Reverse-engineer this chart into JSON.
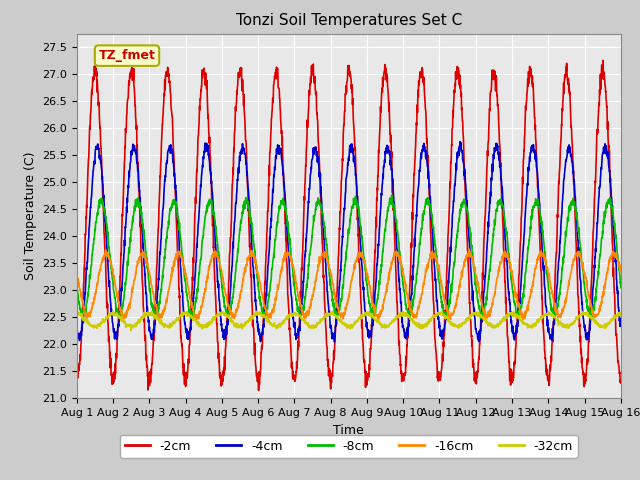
{
  "title": "Tonzi Soil Temperatures Set C",
  "xlabel": "Time",
  "ylabel": "Soil Temperature (C)",
  "xlim": [
    0,
    15
  ],
  "ylim": [
    21.0,
    27.75
  ],
  "xtick_labels": [
    "Aug 1",
    "Aug 2",
    "Aug 3",
    "Aug 4",
    "Aug 5",
    "Aug 6",
    "Aug 7",
    "Aug 8",
    "Aug 9",
    "Aug 10",
    "Aug 11",
    "Aug 12",
    "Aug 13",
    "Aug 14",
    "Aug 15",
    "Aug 16"
  ],
  "ytick_values": [
    21.0,
    21.5,
    22.0,
    22.5,
    23.0,
    23.5,
    24.0,
    24.5,
    25.0,
    25.5,
    26.0,
    26.5,
    27.0,
    27.5
  ],
  "series": {
    "-2cm": {
      "color": "#DD0000"
    },
    "-4cm": {
      "color": "#0000CC"
    },
    "-8cm": {
      "color": "#00BB00"
    },
    "-16cm": {
      "color": "#FF8800"
    },
    "-32cm": {
      "color": "#CCCC00"
    }
  },
  "legend_order": [
    "-2cm",
    "-4cm",
    "-8cm",
    "-16cm",
    "-32cm"
  ],
  "annotation_text": "TZ_fmet",
  "fig_facecolor": "#CCCCCC",
  "axes_facecolor": "#E8E8E8",
  "grid_color": "#FFFFFF",
  "linewidth": 1.2,
  "title_fontsize": 11,
  "tick_fontsize": 8,
  "label_fontsize": 9
}
